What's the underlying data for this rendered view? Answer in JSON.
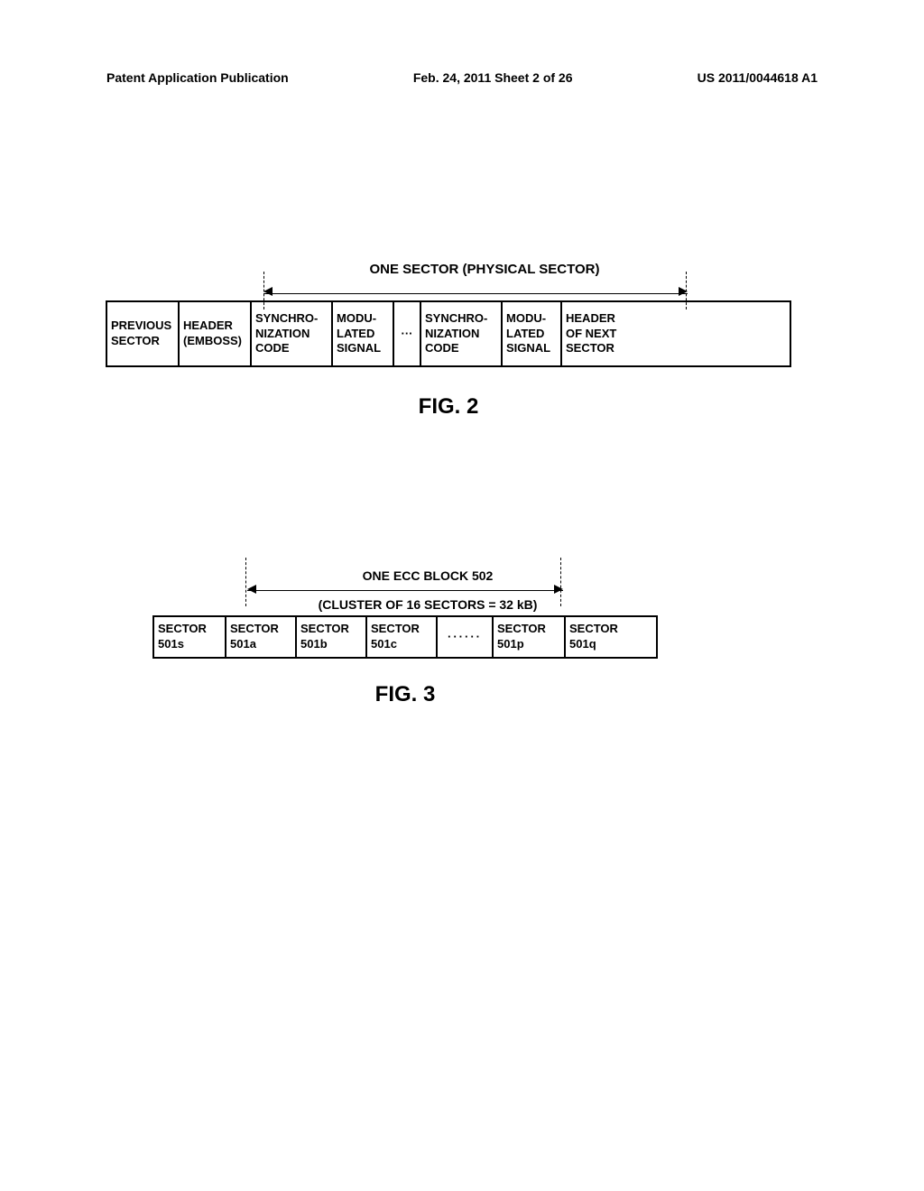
{
  "header": {
    "left": "Patent Application Publication",
    "center": "Feb. 24, 2011  Sheet 2 of 26",
    "right": "US 2011/0044618 A1"
  },
  "fig2": {
    "bracket_label": "ONE SECTOR (PHYSICAL SECTOR)",
    "cells": [
      "PREVIOUS SECTOR",
      "HEADER (EMBOSS)",
      "SYNCHRO-NIZATION CODE",
      "MODU-LATED SIGNAL",
      "···",
      "SYNCHRO-NIZATION CODE",
      "MODU-LATED SIGNAL",
      "HEADER OF NEXT SECTOR"
    ],
    "caption": "FIG. 2"
  },
  "fig3": {
    "bracket_label": "ONE ECC BLOCK 502",
    "bracket_sub": "(CLUSTER OF 16 SECTORS = 32 kB)",
    "cells": [
      "SECTOR 501s",
      "SECTOR 501a",
      "SECTOR 501b",
      "SECTOR 501c",
      "······",
      "SECTOR 501p",
      "SECTOR 501q"
    ],
    "caption": "FIG. 3"
  }
}
